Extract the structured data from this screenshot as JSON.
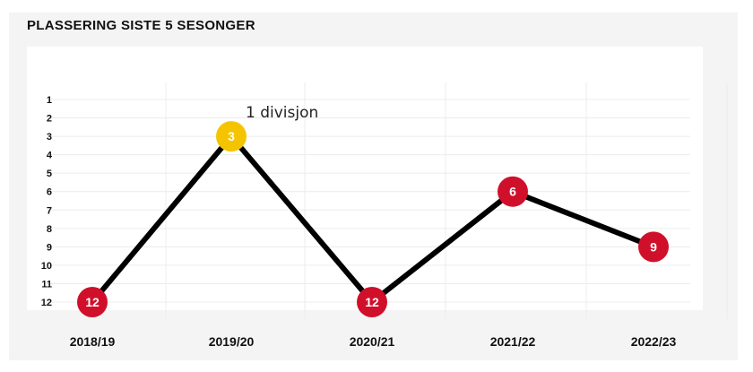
{
  "title": "PLASSERING SISTE 5 SESONGER",
  "colors": {
    "panel_bg": "#f4f4f4",
    "line": "#000000",
    "point_default": "#d0102b",
    "point_highlight": "#f5c400",
    "grid": "#ececec"
  },
  "chart_data": {
    "type": "line",
    "title": "PLASSERING SISTE 5 SESONGER",
    "xlabel": "",
    "ylabel": "",
    "categories": [
      "2018/19",
      "2019/20",
      "2020/21",
      "2021/22",
      "2022/23"
    ],
    "values": [
      12,
      3,
      12,
      6,
      9
    ],
    "y_ticks": [
      "1",
      "2",
      "3",
      "4",
      "5",
      "6",
      "7",
      "8",
      "9",
      "10",
      "11",
      "12"
    ],
    "ylim": [
      1,
      12
    ],
    "y_inverted": true,
    "grid": true,
    "highlight_index": 1,
    "annotations": [
      {
        "index": 1,
        "text": "1 divisjon"
      }
    ]
  }
}
